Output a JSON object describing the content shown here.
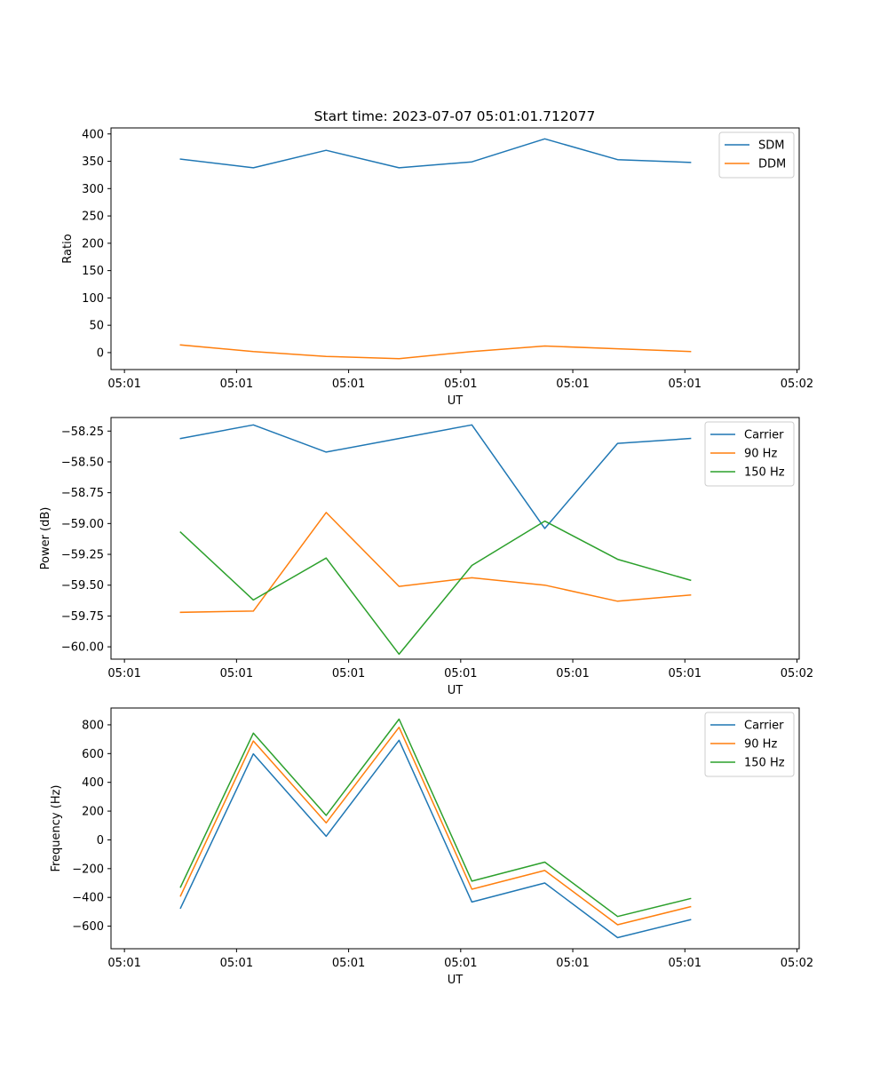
{
  "figure": {
    "title": "Start time: 2023-07-07 05:01:01.712077"
  },
  "chart_data": [
    {
      "type": "line",
      "xlabel": "UT",
      "ylabel": "Ratio",
      "x_tick_labels": [
        "05:01",
        "05:01",
        "05:01",
        "05:01",
        "05:01",
        "05:01",
        "05:02"
      ],
      "x_tick_values": [
        0,
        1,
        2,
        3,
        4,
        5,
        6
      ],
      "xlim": [
        -0.12,
        6.02
      ],
      "y_ticks": [
        0,
        50,
        100,
        150,
        200,
        250,
        300,
        350,
        400
      ],
      "y_tick_labels": [
        "0",
        "50",
        "100",
        "150",
        "200",
        "250",
        "300",
        "350",
        "400"
      ],
      "ylim": [
        -31,
        411
      ],
      "x": [
        0.5,
        1.15,
        1.8,
        2.45,
        3.1,
        3.75,
        4.4,
        5.05
      ],
      "series": [
        {
          "name": "SDM",
          "color": "#1f77b4",
          "values": [
            354,
            338,
            370,
            338,
            349,
            391,
            353,
            348
          ]
        },
        {
          "name": "DDM",
          "color": "#ff7f0e",
          "values": [
            14,
            2,
            -7,
            -11,
            2,
            12,
            7,
            2
          ]
        }
      ],
      "legend": "upper-right"
    },
    {
      "type": "line",
      "xlabel": "UT",
      "ylabel": "Power (dB)",
      "x_tick_labels": [
        "05:01",
        "05:01",
        "05:01",
        "05:01",
        "05:01",
        "05:01",
        "05:02"
      ],
      "x_tick_values": [
        0,
        1,
        2,
        3,
        4,
        5,
        6
      ],
      "xlim": [
        -0.12,
        6.02
      ],
      "y_ticks": [
        -60.0,
        -59.75,
        -59.5,
        -59.25,
        -59.0,
        -58.75,
        -58.5,
        -58.25
      ],
      "y_tick_labels": [
        "−60.00",
        "−59.75",
        "−59.50",
        "−59.25",
        "−59.00",
        "−58.75",
        "−58.50",
        "−58.25"
      ],
      "ylim": [
        -60.1,
        -58.14
      ],
      "x": [
        0.5,
        1.15,
        1.8,
        2.45,
        3.1,
        3.75,
        4.4,
        5.05
      ],
      "series": [
        {
          "name": "Carrier",
          "color": "#1f77b4",
          "values": [
            -58.31,
            -58.2,
            -58.42,
            -58.31,
            -58.2,
            -59.04,
            -58.35,
            -58.31
          ]
        },
        {
          "name": "90 Hz",
          "color": "#ff7f0e",
          "values": [
            -59.72,
            -59.71,
            -58.91,
            -59.51,
            -59.44,
            -59.5,
            -59.63,
            -59.58
          ]
        },
        {
          "name": "150 Hz",
          "color": "#2ca02c",
          "values": [
            -59.07,
            -59.62,
            -59.28,
            -60.06,
            -59.34,
            -58.98,
            -59.29,
            -59.46
          ]
        }
      ],
      "legend": "upper-right"
    },
    {
      "type": "line",
      "xlabel": "UT",
      "ylabel": "Frequency (Hz)",
      "x_tick_labels": [
        "05:01",
        "05:01",
        "05:01",
        "05:01",
        "05:01",
        "05:01",
        "05:02"
      ],
      "x_tick_values": [
        0,
        1,
        2,
        3,
        4,
        5,
        6
      ],
      "xlim": [
        -0.12,
        6.02
      ],
      "y_ticks": [
        -600,
        -400,
        -200,
        0,
        200,
        400,
        600,
        800
      ],
      "y_tick_labels": [
        "−600",
        "−400",
        "−200",
        "0",
        "200",
        "400",
        "600",
        "800"
      ],
      "ylim": [
        -757,
        917
      ],
      "x": [
        0.5,
        1.15,
        1.8,
        2.45,
        3.1,
        3.75,
        4.4,
        5.05
      ],
      "series": [
        {
          "name": "Carrier",
          "color": "#1f77b4",
          "values": [
            -475,
            598,
            25,
            693,
            -432,
            -300,
            -680,
            -555
          ]
        },
        {
          "name": "90 Hz",
          "color": "#ff7f0e",
          "values": [
            -390,
            688,
            118,
            783,
            -343,
            -213,
            -590,
            -465
          ]
        },
        {
          "name": "150 Hz",
          "color": "#2ca02c",
          "values": [
            -328,
            742,
            170,
            840,
            -287,
            -155,
            -533,
            -408
          ]
        }
      ],
      "legend": "upper-right"
    }
  ]
}
